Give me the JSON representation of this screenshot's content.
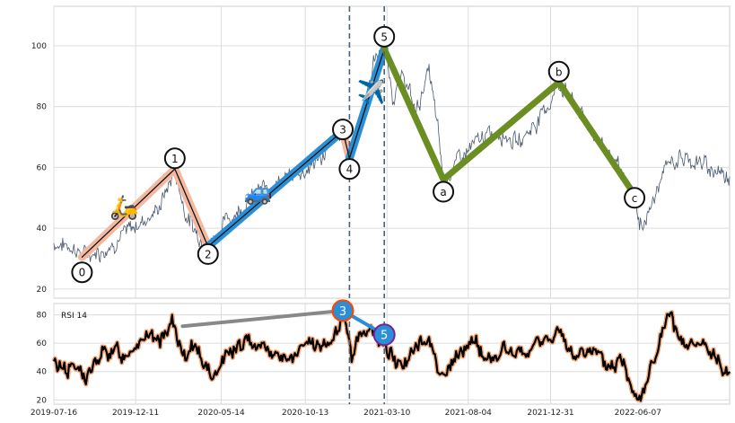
{
  "chart_data": [
    {
      "type": "line",
      "panel": "price",
      "ylim": [
        17,
        113
      ],
      "y_ticks": [
        20,
        40,
        60,
        80,
        100
      ],
      "grid": true,
      "x_range": [
        "2019-07-16",
        "2022-11-20"
      ],
      "price_anchors": [
        {
          "x": "2019-07-16",
          "y": 35
        },
        {
          "x": "2019-08-20",
          "y": 34
        },
        {
          "x": "2019-09-05",
          "y": 31
        },
        {
          "x": "2019-10-15",
          "y": 33
        },
        {
          "x": "2019-11-20",
          "y": 38
        },
        {
          "x": "2019-12-20",
          "y": 42
        },
        {
          "x": "2020-01-20",
          "y": 46
        },
        {
          "x": "2020-02-20",
          "y": 59
        },
        {
          "x": "2020-03-10",
          "y": 45
        },
        {
          "x": "2020-03-25",
          "y": 40
        },
        {
          "x": "2020-04-20",
          "y": 34
        },
        {
          "x": "2020-05-20",
          "y": 42
        },
        {
          "x": "2020-06-20",
          "y": 47
        },
        {
          "x": "2020-07-20",
          "y": 52
        },
        {
          "x": "2020-08-20",
          "y": 55
        },
        {
          "x": "2020-09-20",
          "y": 57
        },
        {
          "x": "2020-10-20",
          "y": 60
        },
        {
          "x": "2020-11-20",
          "y": 65
        },
        {
          "x": "2020-12-20",
          "y": 72
        },
        {
          "x": "2021-01-01",
          "y": 63
        },
        {
          "x": "2021-01-20",
          "y": 74
        },
        {
          "x": "2021-02-15",
          "y": 95
        },
        {
          "x": "2021-03-05",
          "y": 100
        },
        {
          "x": "2021-03-20",
          "y": 84
        },
        {
          "x": "2021-04-10",
          "y": 90
        },
        {
          "x": "2021-05-01",
          "y": 78
        },
        {
          "x": "2021-05-25",
          "y": 92
        },
        {
          "x": "2021-06-10",
          "y": 72
        },
        {
          "x": "2021-06-20",
          "y": 56
        },
        {
          "x": "2021-07-20",
          "y": 63
        },
        {
          "x": "2021-09-01",
          "y": 70
        },
        {
          "x": "2021-10-01",
          "y": 72
        },
        {
          "x": "2021-11-01",
          "y": 68
        },
        {
          "x": "2021-12-01",
          "y": 74
        },
        {
          "x": "2022-01-01",
          "y": 82
        },
        {
          "x": "2022-01-15",
          "y": 88
        },
        {
          "x": "2022-02-15",
          "y": 80
        },
        {
          "x": "2022-03-15",
          "y": 72
        },
        {
          "x": "2022-04-15",
          "y": 65
        },
        {
          "x": "2022-05-15",
          "y": 55
        },
        {
          "x": "2022-06-01",
          "y": 50
        },
        {
          "x": "2022-06-10",
          "y": 40
        },
        {
          "x": "2022-07-01",
          "y": 47
        },
        {
          "x": "2022-08-01",
          "y": 62
        },
        {
          "x": "2022-09-01",
          "y": 63
        },
        {
          "x": "2022-10-01",
          "y": 61
        },
        {
          "x": "2022-11-20",
          "y": 57
        }
      ],
      "waves": [
        {
          "label": "0",
          "x": "2019-09-05",
          "y": 30.5
        },
        {
          "label": "1",
          "x": "2020-02-20",
          "y": 59.5
        },
        {
          "label": "2",
          "x": "2020-04-20",
          "y": 34
        },
        {
          "label": "3",
          "x": "2020-12-20",
          "y": 72
        },
        {
          "label": "4",
          "x": "2021-01-01",
          "y": 63
        },
        {
          "label": "5",
          "x": "2021-03-05",
          "y": 99
        },
        {
          "label": "a",
          "x": "2021-06-20",
          "y": 56
        },
        {
          "label": "b",
          "x": "2022-01-15",
          "y": 88
        },
        {
          "label": "c",
          "x": "2022-06-01",
          "y": 51
        }
      ],
      "wave_label_markers": [
        {
          "label": "0",
          "x": "2019-09-05",
          "y": 25.5
        },
        {
          "label": "1",
          "x": "2020-02-20",
          "y": 63
        },
        {
          "label": "2",
          "x": "2020-04-20",
          "y": 31.5
        },
        {
          "label": "3",
          "x": "2020-12-20",
          "y": 72.5
        },
        {
          "label": "4",
          "x": "2021-01-01",
          "y": 59.5
        },
        {
          "label": "5",
          "x": "2021-03-05",
          "y": 103
        },
        {
          "label": "a",
          "x": "2021-06-20",
          "y": 52
        },
        {
          "label": "b",
          "x": "2022-01-15",
          "y": 91.5
        },
        {
          "label": "c",
          "x": "2022-06-01",
          "y": 50
        }
      ],
      "emoji_markers": [
        {
          "name": "scooter",
          "glyph": "🛵",
          "x": "2019-11-20",
          "y": 47
        },
        {
          "name": "car",
          "glyph": "🚙",
          "x": "2020-07-20",
          "y": 52
        },
        {
          "name": "airplane",
          "glyph": "✈️",
          "x": "2021-02-10",
          "y": 85
        }
      ],
      "vertical_lines": [
        "2021-01-01",
        "2021-03-05"
      ],
      "colors": {
        "price": "#4a5a70",
        "impulse_12": "#f4b8a0",
        "impulse_3": "#2a8fd6",
        "correction": "#6b8e23",
        "vline": "#4a6178"
      }
    },
    {
      "type": "line",
      "panel": "rsi",
      "series_label": "RSI 14",
      "ylim": [
        17,
        88
      ],
      "y_ticks": [
        20,
        40,
        60,
        80
      ],
      "grid": true,
      "x_ticks": [
        "2019-07-16",
        "2019-12-11",
        "2020-05-14",
        "2020-10-13",
        "2021-03-10",
        "2021-08-04",
        "2021-12-31",
        "2022-06-07"
      ],
      "rsi_anchors": [
        {
          "x": "2019-07-16",
          "y": 45
        },
        {
          "x": "2019-08-25",
          "y": 43
        },
        {
          "x": "2019-09-10",
          "y": 35
        },
        {
          "x": "2019-10-20",
          "y": 55
        },
        {
          "x": "2019-11-20",
          "y": 52
        },
        {
          "x": "2019-12-20",
          "y": 65
        },
        {
          "x": "2020-01-20",
          "y": 60
        },
        {
          "x": "2020-02-15",
          "y": 76
        },
        {
          "x": "2020-03-10",
          "y": 45
        },
        {
          "x": "2020-03-30",
          "y": 60
        },
        {
          "x": "2020-04-25",
          "y": 35
        },
        {
          "x": "2020-05-20",
          "y": 52
        },
        {
          "x": "2020-06-20",
          "y": 58
        },
        {
          "x": "2020-07-20",
          "y": 62
        },
        {
          "x": "2020-08-20",
          "y": 52
        },
        {
          "x": "2020-09-20",
          "y": 48
        },
        {
          "x": "2020-10-20",
          "y": 60
        },
        {
          "x": "2020-11-20",
          "y": 55
        },
        {
          "x": "2020-12-20",
          "y": 79
        },
        {
          "x": "2021-01-05",
          "y": 50
        },
        {
          "x": "2021-01-25",
          "y": 72
        },
        {
          "x": "2021-02-15",
          "y": 65
        },
        {
          "x": "2021-03-05",
          "y": 58
        },
        {
          "x": "2021-04-01",
          "y": 45
        },
        {
          "x": "2021-05-01",
          "y": 55
        },
        {
          "x": "2021-05-25",
          "y": 64
        },
        {
          "x": "2021-06-20",
          "y": 35
        },
        {
          "x": "2021-07-15",
          "y": 50
        },
        {
          "x": "2021-08-10",
          "y": 62
        },
        {
          "x": "2021-09-10",
          "y": 48
        },
        {
          "x": "2021-10-10",
          "y": 55
        },
        {
          "x": "2021-11-10",
          "y": 50
        },
        {
          "x": "2021-12-10",
          "y": 60
        },
        {
          "x": "2022-01-10",
          "y": 68
        },
        {
          "x": "2022-02-10",
          "y": 50
        },
        {
          "x": "2022-03-10",
          "y": 58
        },
        {
          "x": "2022-04-10",
          "y": 42
        },
        {
          "x": "2022-05-10",
          "y": 48
        },
        {
          "x": "2022-06-01",
          "y": 28
        },
        {
          "x": "2022-06-10",
          "y": 22
        },
        {
          "x": "2022-07-01",
          "y": 42
        },
        {
          "x": "2022-08-01",
          "y": 78
        },
        {
          "x": "2022-09-01",
          "y": 55
        },
        {
          "x": "2022-10-01",
          "y": 58
        },
        {
          "x": "2022-11-20",
          "y": 40
        }
      ],
      "divergence_lines": [
        {
          "from": {
            "x": "2020-03-05",
            "y": 72
          },
          "to": {
            "x": "2020-12-20",
            "y": 83
          },
          "color": "#888888"
        },
        {
          "from": {
            "x": "2020-12-20",
            "y": 83
          },
          "to": {
            "x": "2021-03-05",
            "y": 66
          },
          "color": "#2a8fd6"
        }
      ],
      "rsi_markers": [
        {
          "label": "3",
          "x": "2020-12-20",
          "y": 83
        },
        {
          "label": "5",
          "x": "2021-03-05",
          "y": 66
        }
      ],
      "colors": {
        "rsi_line": "#000000",
        "rsi_halo": "#f4a878",
        "marker_fill": "#2a8fd6",
        "marker_ring_3": "#ff4500",
        "marker_ring_5": "#7a1fa2"
      }
    }
  ]
}
